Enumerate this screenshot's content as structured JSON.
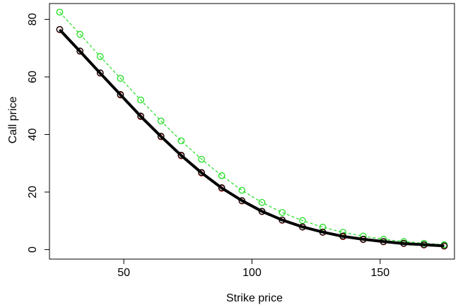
{
  "chart_data": {
    "type": "line",
    "title": "",
    "xlabel": "Strike price",
    "ylabel": "Call price",
    "xlim": [
      21,
      179
    ],
    "ylim": [
      -3.3,
      85.5
    ],
    "x_ticks": [
      50,
      100,
      150
    ],
    "y_ticks": [
      0,
      20,
      40,
      60,
      80
    ],
    "grid": false,
    "legend": "none",
    "x": [
      25,
      32.9,
      40.8,
      48.7,
      56.6,
      64.5,
      72.4,
      80.3,
      88.2,
      96.1,
      103.9,
      111.8,
      119.7,
      127.6,
      135.5,
      143.4,
      151.3,
      159.2,
      167.1,
      175
    ],
    "series": [
      {
        "style": "solid-thick",
        "color": "#000000",
        "marker": "none",
        "values": [
          76.4,
          68.9,
          61.3,
          53.8,
          46.3,
          39.3,
          32.7,
          26.7,
          21.4,
          17.0,
          13.3,
          10.3,
          7.9,
          6.1,
          4.6,
          3.6,
          2.8,
          2.1,
          1.7,
          1.3
        ]
      },
      {
        "style": "dashed",
        "color": "#000000",
        "marker": "circle",
        "values": [
          76.5,
          69.0,
          61.4,
          53.9,
          46.4,
          39.4,
          32.8,
          26.8,
          21.5,
          17.0,
          13.3,
          10.3,
          7.9,
          6.1,
          4.7,
          3.6,
          2.8,
          2.2,
          1.7,
          1.3
        ]
      },
      {
        "style": "dashed",
        "color": "#dd2222",
        "marker": "circle",
        "values": [
          76.4,
          68.9,
          61.3,
          53.7,
          46.2,
          39.2,
          32.6,
          26.6,
          21.3,
          16.9,
          13.2,
          10.2,
          7.8,
          6.0,
          4.5,
          3.5,
          2.7,
          2.1,
          1.6,
          1.2
        ]
      },
      {
        "style": "dashed",
        "color": "#22dd22",
        "marker": "circle",
        "values": [
          82.5,
          74.8,
          67.1,
          59.5,
          52.0,
          44.7,
          37.8,
          31.4,
          25.7,
          20.6,
          16.4,
          12.9,
          10.1,
          7.8,
          6.0,
          4.7,
          3.6,
          2.8,
          2.2,
          1.7
        ]
      }
    ]
  }
}
